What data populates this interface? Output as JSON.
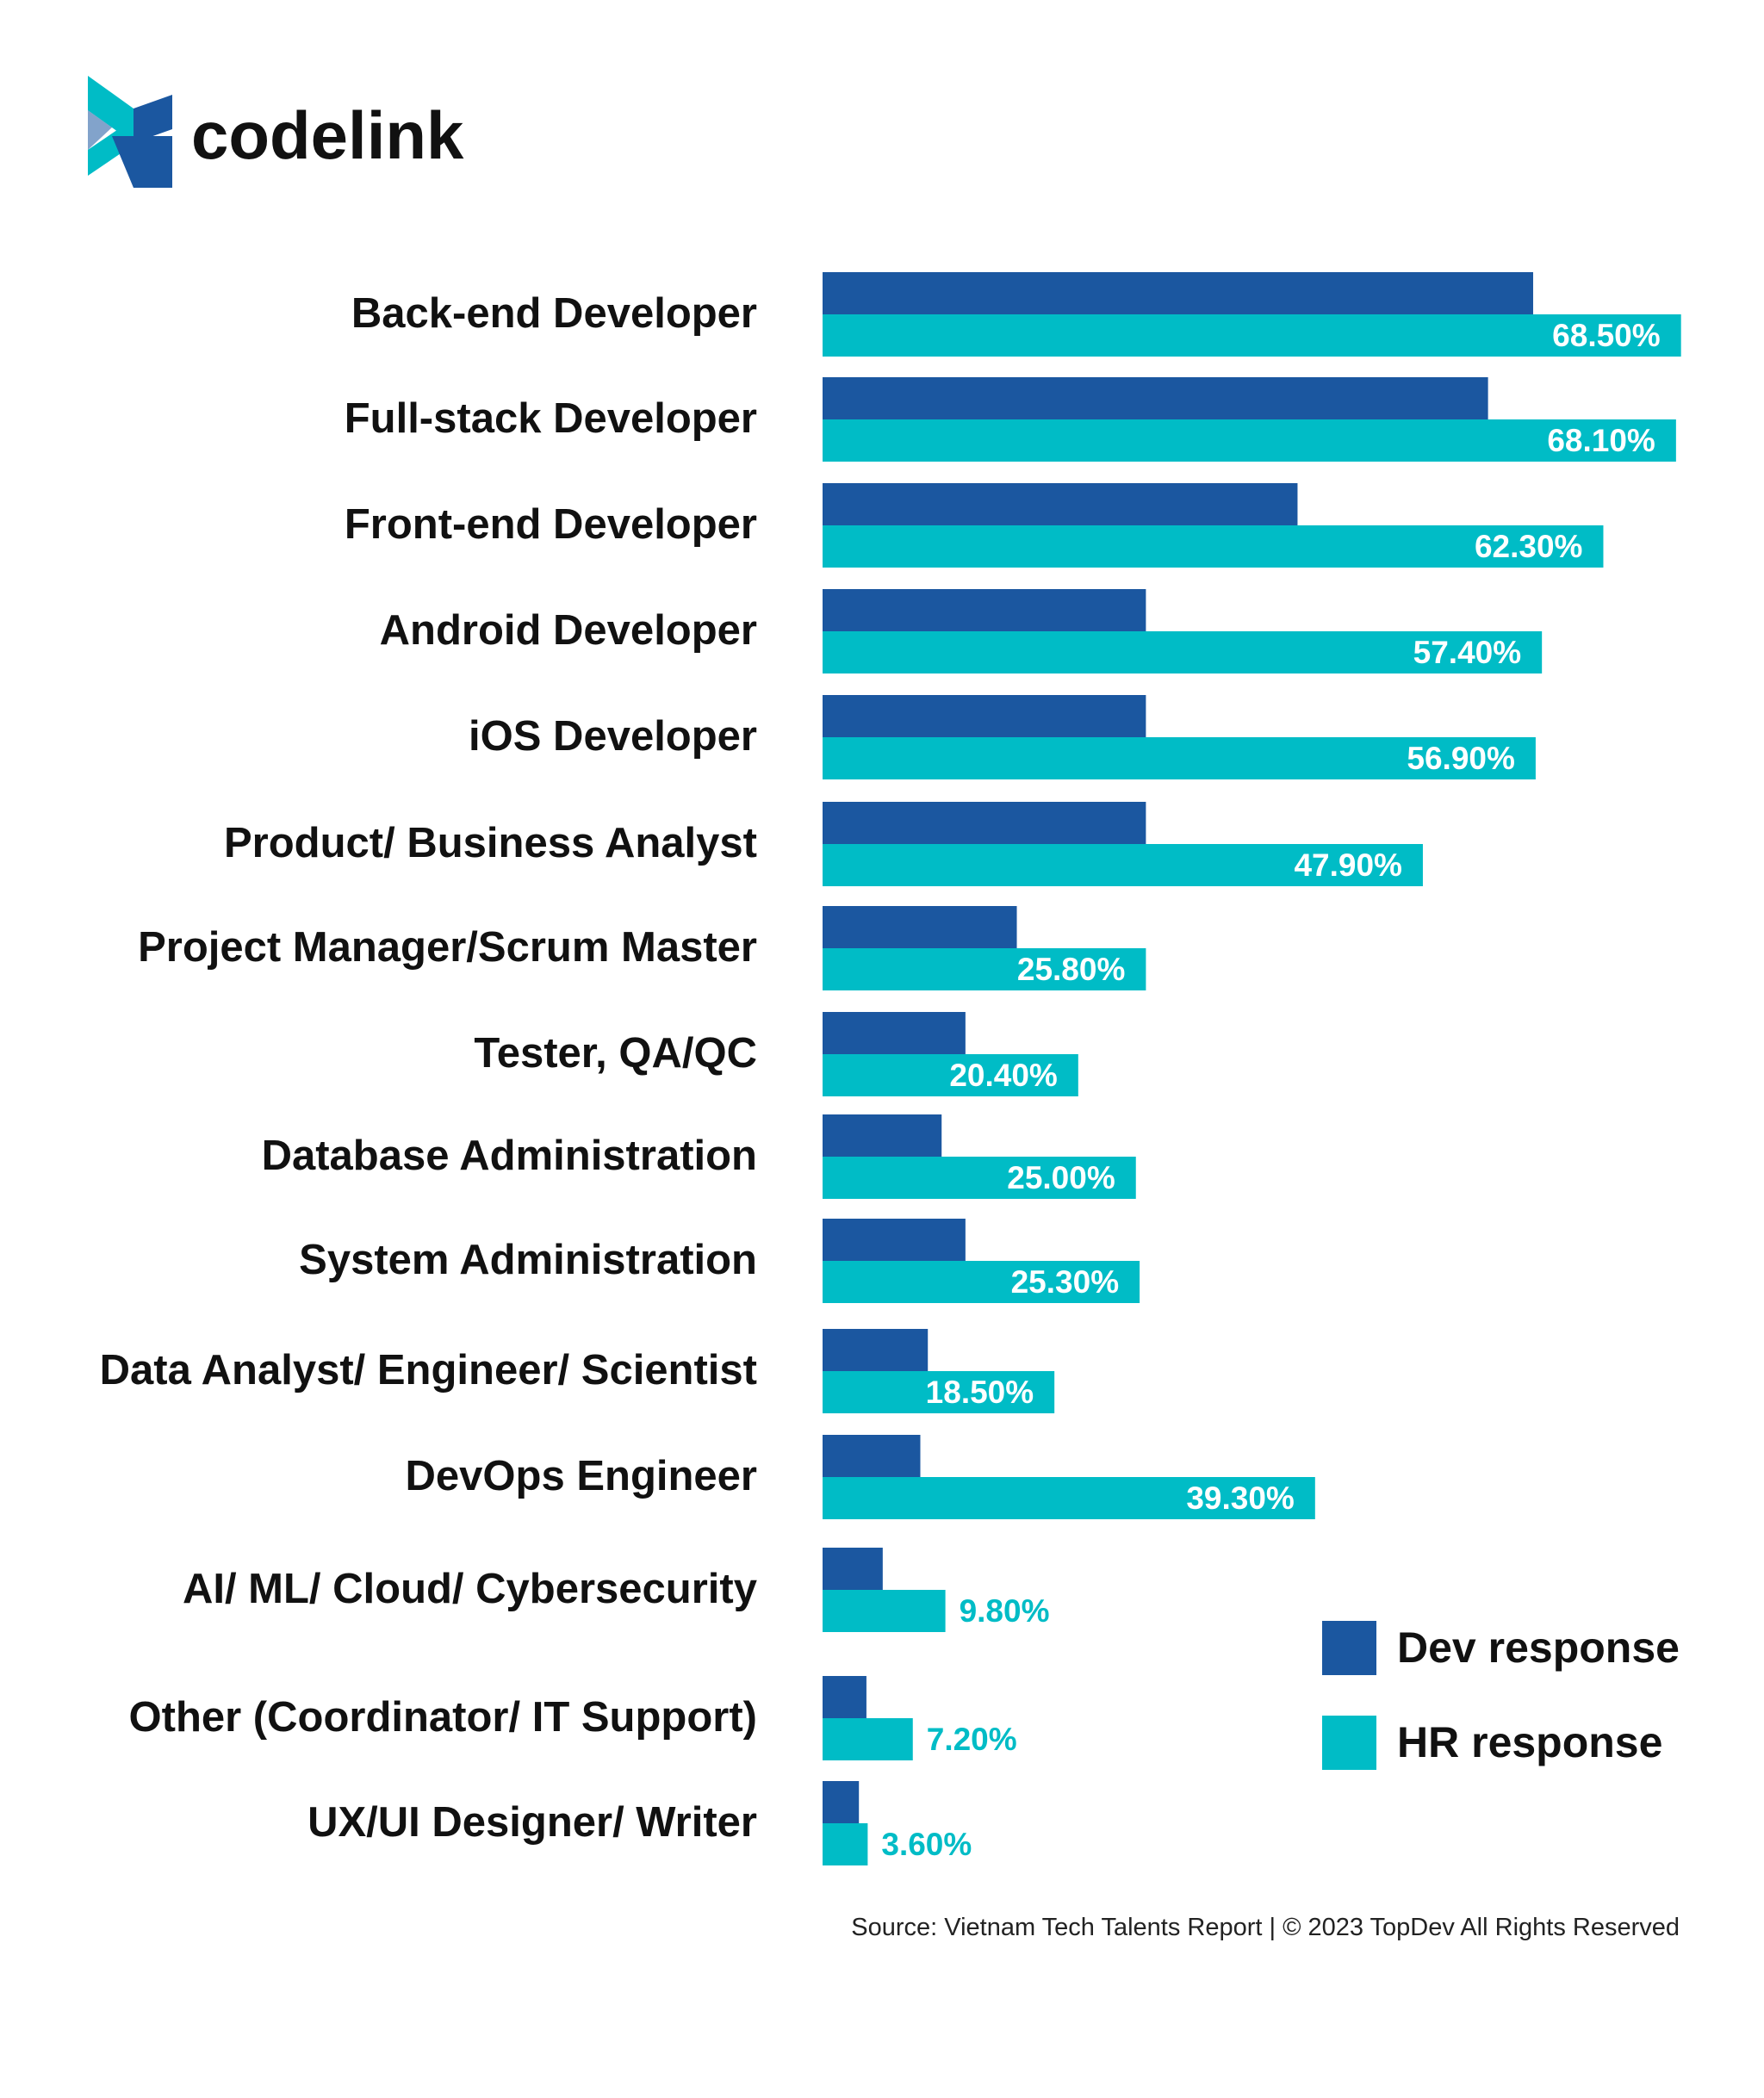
{
  "brand": {
    "name": "codelink",
    "logo_icon": "codelink-chevron-icon",
    "colors": {
      "dark_blue": "#1b57a0",
      "teal": "#00bcc6",
      "text": "#111111"
    }
  },
  "chart_data": {
    "type": "bar",
    "orientation": "horizontal",
    "categories": [
      "Back-end Developer",
      "Full-stack Developer",
      "Front-end Developer",
      "Android Developer",
      "iOS Developer",
      "Product/ Business Analyst",
      "Project Manager/Scrum Master",
      "Tester, QA/QC",
      "Database Administration",
      "System Administration",
      "Data Analyst/ Engineer/ Scientist",
      "DevOps Engineer",
      "AI/ ML/ Cloud/ Cybersecurity",
      "Other (Coordinator/ IT Support)",
      "UX/UI Designer/ Writer"
    ],
    "series": [
      {
        "name": "Dev response",
        "color": "#1b57a0",
        "values": [
          56.7,
          53.1,
          37.9,
          25.8,
          25.8,
          25.8,
          15.5,
          11.4,
          9.5,
          11.4,
          8.4,
          7.8,
          4.8,
          3.5,
          2.9
        ]
      },
      {
        "name": "HR response",
        "color": "#00bcc6",
        "values": [
          68.5,
          68.1,
          62.3,
          57.4,
          56.9,
          47.9,
          25.8,
          20.4,
          25.0,
          25.3,
          18.5,
          39.3,
          9.8,
          7.2,
          3.6
        ],
        "labels": [
          "68.50%",
          "68.10%",
          "62.30%",
          "57.40%",
          "56.90%",
          "47.90%",
          "25.80%",
          "20.40%",
          "25.00%",
          "25.30%",
          "18.50%",
          "39.30%",
          "9.80%",
          "7.20%",
          "3.60%"
        ]
      }
    ],
    "legend": [
      "Dev response",
      "HR response"
    ],
    "legend_position": "bottom-right",
    "xlim": [
      0,
      70
    ],
    "grid": false,
    "source": "Source: Vietnam Tech Talents Report | © 2023 TopDev All Rights Reserved"
  }
}
